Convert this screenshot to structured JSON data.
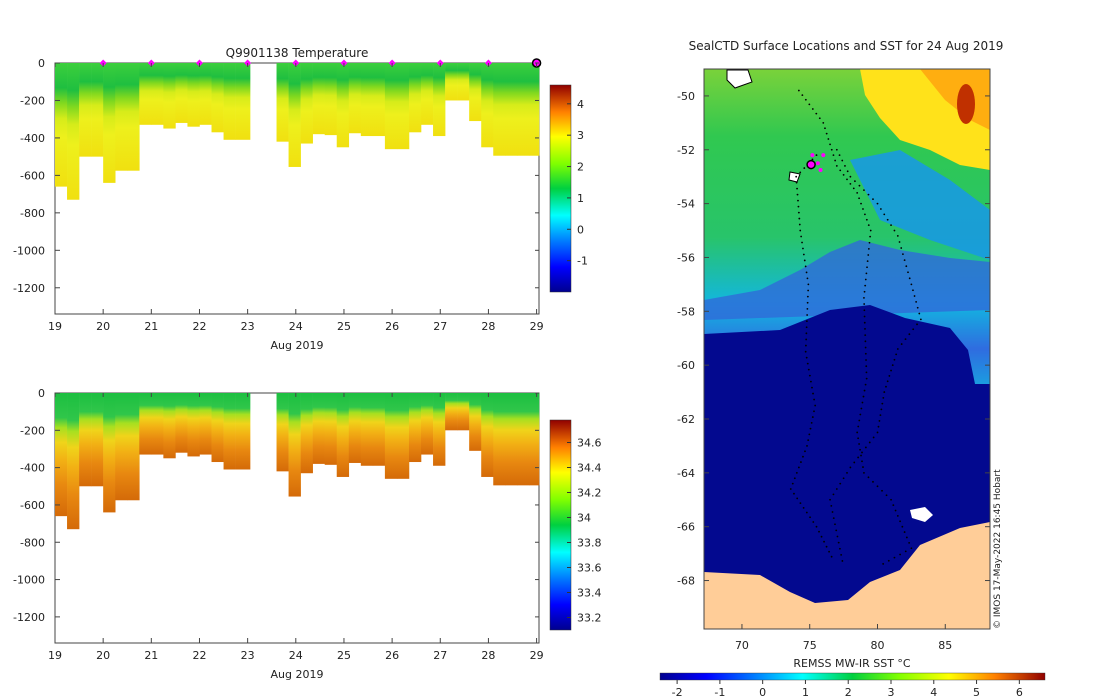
{
  "chart_data": [
    {
      "type": "heatmap",
      "title": "Q9901138  Temperature",
      "xlabel": "Aug 2019",
      "ylabel": "",
      "x_ticks": [
        19,
        20,
        21,
        22,
        23,
        24,
        25,
        26,
        27,
        28,
        29
      ],
      "y_ticks": [
        0,
        -200,
        -400,
        -600,
        -800,
        -1000,
        -1200
      ],
      "xlim": [
        19,
        29.05
      ],
      "ylim": [
        -1340,
        0
      ],
      "colorbar": {
        "ticks": [
          -1,
          0,
          1,
          2,
          3,
          4
        ],
        "range": [
          -2,
          4.6
        ]
      },
      "gap_days": [
        23.05,
        23.6
      ],
      "surface_markers_days": [
        20,
        21,
        22,
        23,
        24,
        25,
        26,
        27,
        28
      ],
      "current_marker_day": 29,
      "profiles": [
        {
          "day": 19.0,
          "max_depth": 660
        },
        {
          "day": 19.25,
          "max_depth": 730
        },
        {
          "day": 19.5,
          "max_depth": 500
        },
        {
          "day": 19.75,
          "max_depth": 500
        },
        {
          "day": 20.0,
          "max_depth": 640
        },
        {
          "day": 20.25,
          "max_depth": 575
        },
        {
          "day": 20.5,
          "max_depth": 575
        },
        {
          "day": 20.75,
          "max_depth": 330
        },
        {
          "day": 21.0,
          "max_depth": 330
        },
        {
          "day": 21.25,
          "max_depth": 350
        },
        {
          "day": 21.5,
          "max_depth": 320
        },
        {
          "day": 21.75,
          "max_depth": 340
        },
        {
          "day": 22.0,
          "max_depth": 330
        },
        {
          "day": 22.25,
          "max_depth": 370
        },
        {
          "day": 22.5,
          "max_depth": 410
        },
        {
          "day": 22.75,
          "max_depth": 410
        },
        {
          "day": 23.6,
          "max_depth": 420
        },
        {
          "day": 23.85,
          "max_depth": 555
        },
        {
          "day": 24.1,
          "max_depth": 430
        },
        {
          "day": 24.35,
          "max_depth": 380
        },
        {
          "day": 24.6,
          "max_depth": 385
        },
        {
          "day": 24.85,
          "max_depth": 450
        },
        {
          "day": 25.1,
          "max_depth": 375
        },
        {
          "day": 25.35,
          "max_depth": 390
        },
        {
          "day": 25.6,
          "max_depth": 390
        },
        {
          "day": 25.85,
          "max_depth": 460
        },
        {
          "day": 26.1,
          "max_depth": 460
        },
        {
          "day": 26.35,
          "max_depth": 370
        },
        {
          "day": 26.6,
          "max_depth": 330
        },
        {
          "day": 26.85,
          "max_depth": 390
        },
        {
          "day": 27.1,
          "max_depth": 200
        },
        {
          "day": 27.35,
          "max_depth": 200
        },
        {
          "day": 27.6,
          "max_depth": 310
        },
        {
          "day": 27.85,
          "max_depth": 450
        },
        {
          "day": 28.1,
          "max_depth": 495
        },
        {
          "day": 28.35,
          "max_depth": 495
        },
        {
          "day": 28.6,
          "max_depth": 495
        },
        {
          "day": 28.85,
          "max_depth": 495
        }
      ]
    },
    {
      "type": "heatmap",
      "title": "",
      "xlabel": "Aug 2019",
      "ylabel": "",
      "x_ticks": [
        19,
        20,
        21,
        22,
        23,
        24,
        25,
        26,
        27,
        28,
        29
      ],
      "y_ticks": [
        0,
        -200,
        -400,
        -600,
        -800,
        -1000,
        -1200
      ],
      "xlim": [
        19,
        29.05
      ],
      "ylim": [
        -1340,
        0
      ],
      "colorbar": {
        "ticks": [
          33.2,
          33.4,
          33.6,
          33.8,
          34,
          34.2,
          34.4,
          34.6
        ],
        "range": [
          33.1,
          34.78
        ]
      },
      "gap_days": [
        23.05,
        23.6
      ]
    },
    {
      "type": "heatmap",
      "title": "SealCTD Surface Locations and SST for 24 Aug 2019",
      "x_ticks": [
        70,
        75,
        80,
        85
      ],
      "y_ticks": [
        -50,
        -52,
        -54,
        -56,
        -58,
        -60,
        -62,
        -64,
        -66,
        -68
      ],
      "xlim": [
        67.2,
        88.3
      ],
      "ylim": [
        -69.8,
        -49
      ],
      "colorbar_label": "REMSS MW-IR SST °C",
      "colorbar": {
        "ticks": [
          -2,
          -1,
          0,
          1,
          2,
          3,
          4,
          5,
          6
        ],
        "range": [
          -2.4,
          6.6
        ]
      },
      "current_location": [
        75.1,
        -52.55
      ],
      "credit": "© IMOS 17-May-2022 16:45 Hobart"
    }
  ]
}
